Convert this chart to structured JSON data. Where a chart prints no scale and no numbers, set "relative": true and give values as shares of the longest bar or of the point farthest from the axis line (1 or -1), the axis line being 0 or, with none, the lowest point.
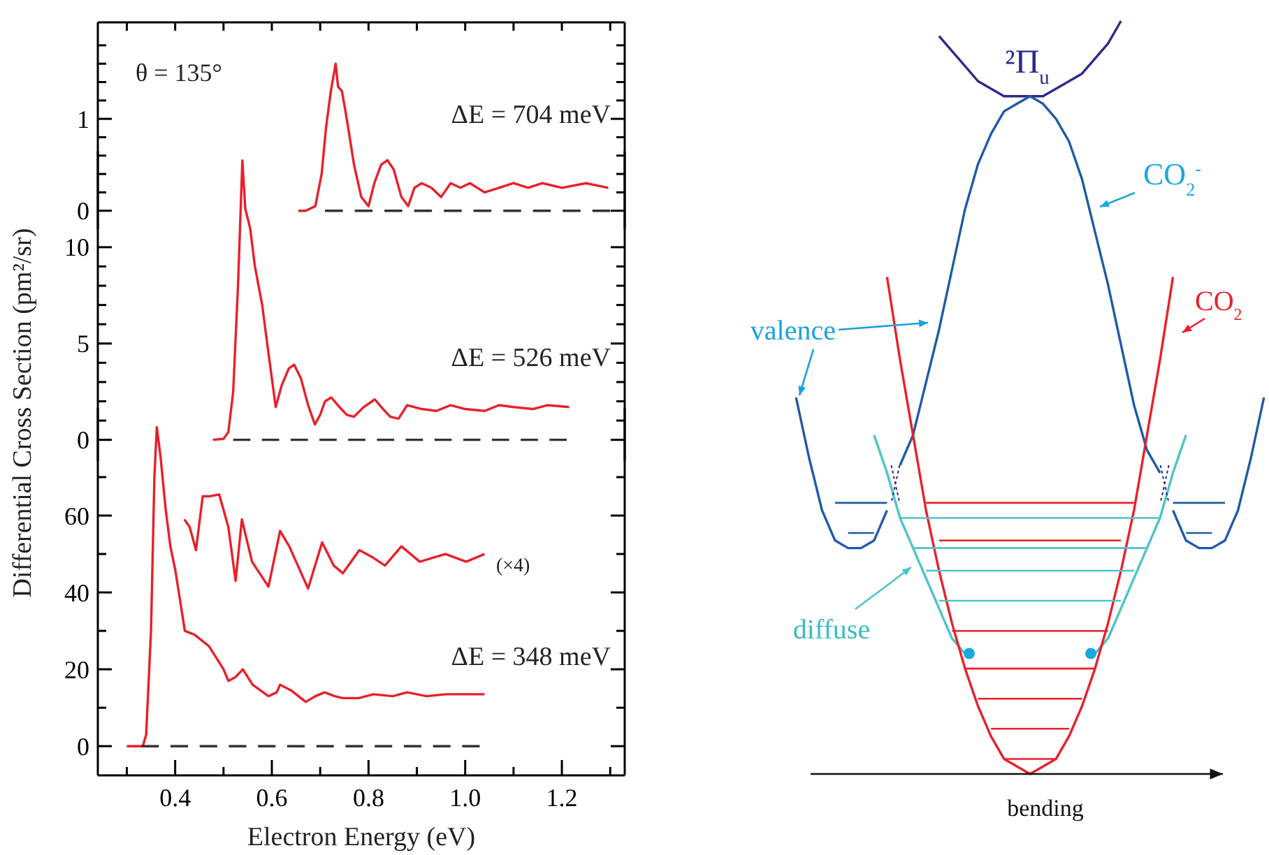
{
  "chart_data": [
    {
      "type": "line",
      "xlim": [
        0.24,
        1.33
      ],
      "ylim": [
        -0.2,
        2.05
      ],
      "tick_labels": "y",
      "xticks": [
        {
          "value": 0.3,
          "label": null
        },
        {
          "value": 0.4,
          "label": null
        },
        {
          "value": 0.5,
          "label": null
        },
        {
          "value": 0.6,
          "label": null
        },
        {
          "value": 0.7,
          "label": null
        },
        {
          "value": 0.8,
          "label": null
        },
        {
          "value": 0.9,
          "label": null
        },
        {
          "value": 1.0,
          "label": null
        },
        {
          "value": 1.1,
          "label": null
        },
        {
          "value": 1.2,
          "label": null
        },
        {
          "value": 1.3,
          "label": null
        }
      ],
      "yticks": [
        0,
        {
          "value": 0.2,
          "label": null
        },
        {
          "value": 0.4,
          "label": null
        },
        {
          "value": 0.6,
          "label": null
        },
        {
          "value": 0.8,
          "label": null
        },
        1,
        {
          "value": 1.2,
          "label": null
        },
        {
          "value": 1.4,
          "label": null
        },
        {
          "value": 1.6,
          "label": null
        },
        {
          "value": 1.8,
          "label": null
        }
      ],
      "annotations": [
        "θ = 135°",
        "ΔE = 704 meV"
      ],
      "series": [
        {
          "color": "#e8202a",
          "x": [
            0.655,
            0.67,
            0.69,
            0.703,
            0.712,
            0.722,
            0.732,
            0.737,
            0.745,
            0.755,
            0.77,
            0.785,
            0.8,
            0.812,
            0.826,
            0.839,
            0.852,
            0.868,
            0.882,
            0.895,
            0.91,
            0.93,
            0.95,
            0.97,
            0.99,
            1.01,
            1.04,
            1.07,
            1.1,
            1.13,
            1.16,
            1.2,
            1.25,
            1.296
          ],
          "values": [
            0,
            0,
            0.05,
            0.4,
            0.9,
            1.3,
            1.6,
            1.35,
            1.3,
            1.0,
            0.5,
            0.15,
            0.05,
            0.3,
            0.5,
            0.55,
            0.45,
            0.15,
            0.05,
            0.25,
            0.3,
            0.25,
            0.15,
            0.3,
            0.25,
            0.3,
            0.2,
            0.25,
            0.3,
            0.25,
            0.3,
            0.25,
            0.3,
            0.25
          ]
        },
        {
          "color": "#333333",
          "line_style": "dashed",
          "x": [
            0.71,
            1.3
          ],
          "values": [
            0,
            0
          ]
        }
      ]
    },
    {
      "type": "line",
      "xlim": [
        0.24,
        1.33
      ],
      "ylim": [
        -1.1,
        15
      ],
      "tick_labels": "y",
      "ylabel": "Differential Cross Section (pm²/sr)",
      "yticks": [
        0,
        {
          "value": 1,
          "label": null
        },
        {
          "value": 2,
          "label": null
        },
        {
          "value": 3,
          "label": null
        },
        {
          "value": 4,
          "label": null
        },
        5,
        {
          "value": 6,
          "label": null
        },
        {
          "value": 7,
          "label": null
        },
        {
          "value": 8,
          "label": null
        },
        {
          "value": 9,
          "label": null
        },
        10
      ],
      "annotations": [
        "ΔE = 526 meV"
      ],
      "series": [
        {
          "color": "#e8202a",
          "x": [
            0.478,
            0.5,
            0.51,
            0.52,
            0.53,
            0.539,
            0.545,
            0.555,
            0.565,
            0.58,
            0.593,
            0.608,
            0.62,
            0.635,
            0.646,
            0.66,
            0.675,
            0.689,
            0.7,
            0.71,
            0.723,
            0.74,
            0.755,
            0.77,
            0.79,
            0.813,
            0.83,
            0.845,
            0.862,
            0.88,
            0.91,
            0.94,
            0.97,
            1.0,
            1.04,
            1.07,
            1.1,
            1.14,
            1.17,
            1.215
          ],
          "values": [
            0,
            0.05,
            0.4,
            2.5,
            8,
            14.5,
            12,
            11,
            9,
            7,
            4.5,
            1.7,
            2.8,
            3.7,
            3.9,
            3.2,
            1.8,
            0.8,
            1.3,
            2,
            2.2,
            1.7,
            1.3,
            1.2,
            1.7,
            2.1,
            1.6,
            1.2,
            1.1,
            1.8,
            1.6,
            1.5,
            1.8,
            1.6,
            1.5,
            1.8,
            1.7,
            1.6,
            1.8,
            1.7
          ]
        },
        {
          "color": "#333333",
          "line_style": "dashed",
          "x": [
            0.52,
            1.21
          ],
          "values": [
            0,
            0
          ]
        }
      ]
    },
    {
      "type": "line",
      "xlim": [
        0.24,
        1.33
      ],
      "ylim": [
        -7.6,
        88
      ],
      "xlabel": "Electron Energy (eV)",
      "xticks": [
        {
          "value": 0.3,
          "label": null
        },
        0.4,
        {
          "value": 0.5,
          "label": null
        },
        0.6,
        {
          "value": 0.7,
          "label": null
        },
        0.8,
        {
          "value": 0.9,
          "label": null
        },
        {
          "value": 1.0,
          "label": "1.0"
        },
        {
          "value": 1.1,
          "label": null
        },
        1.2,
        {
          "value": 1.3,
          "label": null
        }
      ],
      "yticks": [
        0,
        {
          "value": 10,
          "label": null
        },
        20,
        {
          "value": 30,
          "label": null
        },
        40,
        {
          "value": 50,
          "label": null
        },
        60,
        {
          "value": 70,
          "label": null
        }
      ],
      "annotations": [
        "(×4)",
        "ΔE = 348 meV"
      ],
      "series": [
        {
          "color": "#e8202a",
          "x": [
            0.3,
            0.333,
            0.34,
            0.35,
            0.357,
            0.362,
            0.37,
            0.38,
            0.39,
            0.4,
            0.41,
            0.42,
            0.44,
            0.47,
            0.5,
            0.51,
            0.525,
            0.54,
            0.56,
            0.593,
            0.61,
            0.617,
            0.64,
            0.67,
            0.69,
            0.709,
            0.73,
            0.747,
            0.78,
            0.81,
            0.85,
            0.88,
            0.92,
            0.96,
            1.0,
            1.04
          ],
          "values": [
            0,
            0,
            3,
            30,
            70,
            83,
            75,
            62,
            52,
            46,
            38,
            30,
            29,
            26,
            20,
            17,
            18,
            20,
            16,
            13,
            14,
            16,
            14.5,
            11.5,
            13,
            14,
            13,
            12.5,
            12.5,
            13.5,
            13,
            14,
            13,
            13.5,
            13.5,
            13.5
          ]
        },
        {
          "color": "#e8202a",
          "x": [
            0.419,
            0.43,
            0.443,
            0.457,
            0.47,
            0.491,
            0.51,
            0.525,
            0.538,
            0.559,
            0.593,
            0.617,
            0.636,
            0.675,
            0.704,
            0.728,
            0.747,
            0.781,
            0.81,
            0.834,
            0.868,
            0.906,
            0.959,
            1.002,
            1.04
          ],
          "values": [
            59,
            57,
            51,
            65,
            65,
            65.5,
            57,
            43,
            59,
            48,
            41.5,
            56,
            52,
            41,
            53,
            47,
            45,
            51,
            49,
            47,
            52,
            48,
            50,
            48,
            50
          ]
        },
        {
          "color": "#333333",
          "line_style": "dashed",
          "x": [
            0.33,
            1.03
          ],
          "values": [
            0,
            0
          ]
        }
      ]
    },
    {
      "type": "line",
      "relative": true,
      "tick_labels": false,
      "categories": [
        null,
        null,
        null,
        null,
        null,
        null,
        null,
        null,
        null,
        null,
        null,
        null,
        null,
        null,
        null,
        null,
        null,
        null,
        null,
        null,
        null,
        null,
        null,
        null,
        null,
        null,
        null,
        null,
        null,
        null,
        null,
        null,
        null,
        null,
        null,
        null,
        null
      ],
      "xlabel": "bending",
      "annotations": [
        "²Π$_{u}$",
        "CO$_{2}$$^{-}$",
        "CO$_{2}$",
        "valence",
        "diffuse"
      ],
      "series": [
        {
          "color": "#2a2a8c",
          "values": [
            null,
            null,
            null,
            null,
            null,
            null,
            null,
            null,
            null,
            null,
            null,
            0.98,
            0.96,
            0.94,
            0.92,
            0.91,
            0.9,
            0.9,
            0.9,
            0.9,
            0.91,
            0.92,
            0.93,
            0.95,
            0.97,
            1.0,
            null,
            null,
            null,
            null,
            null,
            null,
            null,
            null,
            null,
            null,
            null
          ]
        },
        {
          "color": "#1f5aa6",
          "values": [
            null,
            null,
            null,
            null,
            null,
            null,
            null,
            null,
            0.41,
            0.45,
            0.52,
            0.59,
            0.67,
            0.75,
            0.81,
            0.85,
            0.88,
            0.89,
            0.9,
            0.89,
            0.87,
            0.84,
            0.79,
            0.72,
            0.65,
            0.57,
            0.49,
            0.43,
            0.4,
            null,
            null,
            null,
            null,
            null,
            null,
            null,
            null
          ]
        },
        {
          "color": "#1f5aa6",
          "values": [
            0.5,
            0.42,
            0.35,
            0.31,
            0.3,
            0.3,
            0.31,
            0.35,
            null,
            null,
            null,
            null,
            null,
            null,
            null,
            null,
            null,
            null,
            null,
            null,
            null,
            null,
            null,
            null,
            null,
            null,
            null,
            null,
            null,
            null,
            null,
            null,
            null,
            null,
            null,
            null,
            null
          ]
        },
        {
          "color": "#1f5aa6",
          "values": [
            null,
            null,
            null,
            null,
            null,
            null,
            null,
            null,
            null,
            null,
            null,
            null,
            null,
            null,
            null,
            null,
            null,
            null,
            null,
            null,
            null,
            null,
            null,
            null,
            null,
            null,
            null,
            null,
            null,
            0.35,
            0.31,
            0.3,
            0.3,
            0.31,
            0.35,
            0.42,
            0.5
          ]
        },
        {
          "color": "#4fc3c8",
          "values": [
            null,
            null,
            null,
            null,
            null,
            null,
            0.45,
            0.4,
            0.34,
            0.3,
            0.26,
            0.22,
            0.18,
            0.16,
            null,
            null,
            null,
            null,
            null,
            null,
            null,
            null,
            null,
            null,
            null,
            null,
            null,
            null,
            null,
            null,
            null,
            null,
            null,
            null,
            null,
            null,
            null
          ]
        },
        {
          "color": "#4fc3c8",
          "values": [
            null,
            null,
            null,
            null,
            null,
            null,
            null,
            null,
            null,
            null,
            null,
            null,
            null,
            null,
            null,
            null,
            null,
            null,
            null,
            null,
            null,
            null,
            null,
            0.16,
            0.18,
            0.22,
            0.26,
            0.3,
            0.34,
            0.4,
            0.45,
            null,
            null,
            null,
            null,
            null,
            null
          ]
        },
        {
          "color": "#e8202a",
          "values": [
            null,
            null,
            null,
            null,
            null,
            null,
            null,
            0.66,
            0.55,
            0.45,
            0.35,
            0.27,
            0.2,
            0.14,
            0.09,
            0.05,
            0.02,
            0.01,
            0,
            0.01,
            0.02,
            0.05,
            0.09,
            0.14,
            0.2,
            0.27,
            0.35,
            0.45,
            0.55,
            0.66,
            null,
            null,
            null,
            null,
            null,
            null,
            null
          ]
        },
        {
          "color": "#e8202a",
          "values": [
            null,
            null,
            null,
            null,
            null,
            null,
            null,
            null,
            null,
            null,
            0.36,
            null,
            null,
            null,
            null,
            null,
            null,
            null,
            null,
            null,
            null,
            null,
            null,
            null,
            null,
            null,
            0.36,
            null,
            null,
            null,
            null,
            null,
            null,
            null,
            null,
            null,
            null
          ]
        },
        {
          "color": "#e8202a",
          "values": [
            null,
            null,
            null,
            null,
            null,
            null,
            null,
            null,
            null,
            null,
            null,
            0.31,
            null,
            null,
            null,
            null,
            null,
            null,
            null,
            null,
            null,
            null,
            null,
            null,
            null,
            0.31,
            null,
            null,
            null,
            null,
            null,
            null,
            null,
            null,
            null,
            null,
            null
          ]
        },
        {
          "color": "#e8202a",
          "values": [
            null,
            null,
            null,
            null,
            null,
            null,
            null,
            null,
            null,
            null,
            null,
            null,
            0.19,
            null,
            null,
            null,
            null,
            null,
            null,
            null,
            null,
            null,
            null,
            null,
            0.19,
            null,
            null,
            null,
            null,
            null,
            null,
            null,
            null,
            null,
            null,
            null,
            null
          ]
        },
        {
          "color": "#e8202a",
          "values": [
            null,
            null,
            null,
            null,
            null,
            null,
            null,
            null,
            null,
            null,
            null,
            null,
            null,
            0.14,
            null,
            null,
            null,
            null,
            null,
            null,
            null,
            null,
            null,
            0.14,
            null,
            null,
            null,
            null,
            null,
            null,
            null,
            null,
            null,
            null,
            null,
            null,
            null
          ]
        },
        {
          "color": "#e8202a",
          "values": [
            null,
            null,
            null,
            null,
            null,
            null,
            null,
            null,
            null,
            null,
            null,
            null,
            null,
            null,
            0.1,
            null,
            null,
            null,
            null,
            null,
            null,
            null,
            0.1,
            null,
            null,
            null,
            null,
            null,
            null,
            null,
            null,
            null,
            null,
            null,
            null,
            null,
            null
          ]
        },
        {
          "color": "#e8202a",
          "values": [
            null,
            null,
            null,
            null,
            null,
            null,
            null,
            null,
            null,
            null,
            null,
            null,
            null,
            null,
            null,
            0.06,
            null,
            null,
            null,
            null,
            null,
            0.06,
            null,
            null,
            null,
            null,
            null,
            null,
            null,
            null,
            null,
            null,
            null,
            null,
            null,
            null,
            null
          ]
        },
        {
          "color": "#e8202a",
          "values": [
            null,
            null,
            null,
            null,
            null,
            null,
            null,
            null,
            null,
            null,
            null,
            null,
            null,
            null,
            null,
            null,
            0.02,
            null,
            null,
            null,
            0.02,
            null,
            null,
            null,
            null,
            null,
            null,
            null,
            null,
            null,
            null,
            null,
            null,
            null,
            null,
            null,
            null
          ]
        },
        {
          "color": "#4fc3c8",
          "values": [
            null,
            null,
            null,
            null,
            null,
            null,
            null,
            null,
            0.34,
            null,
            null,
            null,
            null,
            null,
            null,
            null,
            null,
            null,
            null,
            null,
            null,
            null,
            null,
            null,
            null,
            null,
            null,
            null,
            0.34,
            null,
            null,
            null,
            null,
            null,
            null,
            null,
            null
          ]
        },
        {
          "color": "#4fc3c8",
          "values": [
            null,
            null,
            null,
            null,
            null,
            null,
            null,
            null,
            null,
            0.3,
            null,
            null,
            null,
            null,
            null,
            null,
            null,
            null,
            null,
            null,
            null,
            null,
            null,
            null,
            null,
            null,
            null,
            0.3,
            null,
            null,
            null,
            null,
            null,
            null,
            null,
            null,
            null
          ]
        },
        {
          "color": "#4fc3c8",
          "values": [
            null,
            null,
            null,
            null,
            null,
            null,
            null,
            null,
            null,
            null,
            0.27,
            null,
            null,
            null,
            null,
            null,
            null,
            null,
            null,
            null,
            null,
            null,
            null,
            null,
            null,
            null,
            0.27,
            null,
            null,
            null,
            null,
            null,
            null,
            null,
            null,
            null,
            null
          ]
        },
        {
          "color": "#4fc3c8",
          "values": [
            null,
            null,
            null,
            null,
            null,
            null,
            null,
            null,
            null,
            null,
            null,
            0.23,
            null,
            null,
            null,
            null,
            null,
            null,
            null,
            null,
            null,
            null,
            null,
            null,
            null,
            0.23,
            null,
            null,
            null,
            null,
            null,
            null,
            null,
            null,
            null,
            null,
            null
          ]
        },
        {
          "color": "#1f5aa6",
          "values": [
            null,
            null,
            null,
            0.36,
            null,
            null,
            null,
            0.36,
            null,
            null,
            null,
            null,
            null,
            null,
            null,
            null,
            null,
            null,
            null,
            null,
            null,
            null,
            null,
            null,
            null,
            null,
            null,
            null,
            null,
            null,
            null,
            null,
            null,
            null,
            null,
            null,
            null
          ]
        },
        {
          "color": "#1f5aa6",
          "values": [
            null,
            null,
            null,
            null,
            null,
            null,
            null,
            null,
            null,
            null,
            null,
            null,
            null,
            null,
            null,
            null,
            null,
            null,
            null,
            null,
            null,
            null,
            null,
            null,
            null,
            null,
            null,
            null,
            null,
            0.36,
            null,
            null,
            null,
            0.36,
            null,
            null,
            null
          ]
        },
        {
          "color": "#1f5aa6",
          "values": [
            null,
            null,
            null,
            null,
            0.32,
            null,
            0.32,
            null,
            null,
            null,
            null,
            null,
            null,
            null,
            null,
            null,
            null,
            null,
            null,
            null,
            null,
            null,
            null,
            null,
            null,
            null,
            null,
            null,
            null,
            null,
            null,
            null,
            null,
            null,
            null,
            null,
            null
          ]
        },
        {
          "color": "#1f5aa6",
          "values": [
            null,
            null,
            null,
            null,
            null,
            null,
            null,
            null,
            null,
            null,
            null,
            null,
            null,
            null,
            null,
            null,
            null,
            null,
            null,
            null,
            null,
            null,
            null,
            null,
            null,
            null,
            null,
            null,
            null,
            null,
            0.32,
            null,
            0.32,
            null,
            null,
            null,
            null
          ]
        }
      ]
    }
  ]
}
